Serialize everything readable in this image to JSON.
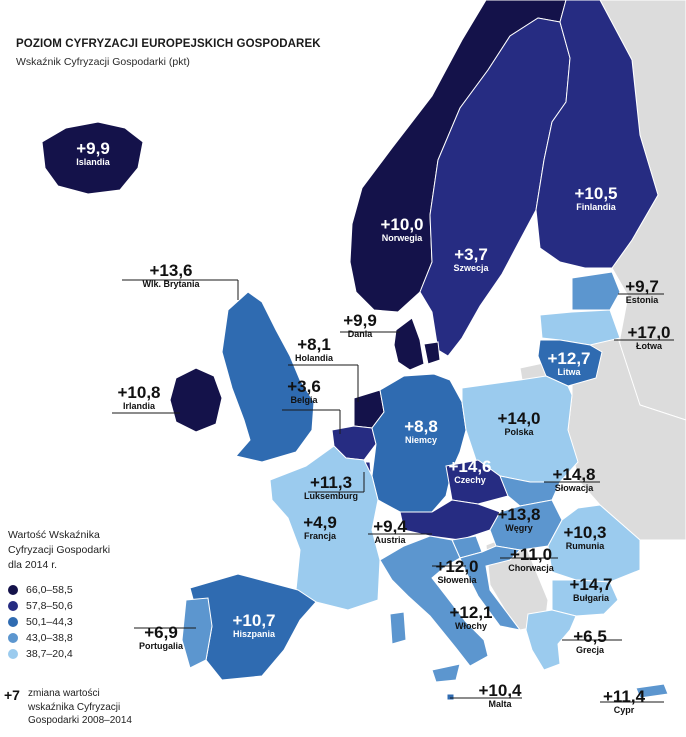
{
  "title": "POZIOM CYFRYZACJI EUROPEJSKICH GOSPODAREK",
  "subtitle": "Wskaźnik Cyfryzacji Gospodarki (pkt)",
  "legend": {
    "title_lines": [
      "Wartość Wskaźnika",
      "Cyfryzacji Gospodarki",
      "dla 2014 r."
    ],
    "items": [
      {
        "range": "66,0–58,5",
        "color": "#14124a"
      },
      {
        "range": "57,8–50,6",
        "color": "#262c82"
      },
      {
        "range": "50,1–44,3",
        "color": "#2f6bb1"
      },
      {
        "range": "43,0–38,8",
        "color": "#5c96cf"
      },
      {
        "range": "38,7–20,4",
        "color": "#9bcbee"
      }
    ],
    "change_sign": "+7",
    "change_lines": [
      "zmiana wartości",
      "wskaźnika Cyfryzacji",
      "Gospodarki 2008–2014"
    ]
  },
  "colors": {
    "sea": "#ffffff",
    "non_member_land": "#dcdcdc",
    "border": "#ffffff",
    "leader_line": "#1a1a1a"
  },
  "countries": {
    "islandia": {
      "value": "+9,9",
      "name": "Islandia",
      "color": "#14124a"
    },
    "norwegia": {
      "value": "+10,0",
      "name": "Norwegia",
      "color": "#14124a"
    },
    "szwecja": {
      "value": "+3,7",
      "name": "Szwecja",
      "color": "#262c82"
    },
    "finlandia": {
      "value": "+10,5",
      "name": "Finlandia",
      "color": "#262c82"
    },
    "estonia": {
      "value": "+9,7",
      "name": "Estonia",
      "color": "#5c96cf"
    },
    "lotwa": {
      "value": "+17,0",
      "name": "Łotwa",
      "color": "#9bcbee"
    },
    "litwa": {
      "value": "+12,7",
      "name": "Litwa",
      "color": "#2f6bb1"
    },
    "dania": {
      "value": "+9,9",
      "name": "Dania",
      "color": "#14124a"
    },
    "wlk_brytania": {
      "value": "+13,6",
      "name": "Wlk. Brytania",
      "color": "#2f6bb1"
    },
    "irlandia": {
      "value": "+10,8",
      "name": "Irlandia",
      "color": "#14124a"
    },
    "holandia": {
      "value": "+8,1",
      "name": "Holandia",
      "color": "#14124a"
    },
    "belgia": {
      "value": "+3,6",
      "name": "Belgia",
      "color": "#262c82"
    },
    "luksemburg": {
      "value": "+11,3",
      "name": "Luksemburg",
      "color": "#262c82"
    },
    "niemcy": {
      "value": "+8,8",
      "name": "Niemcy",
      "color": "#2f6bb1"
    },
    "polska": {
      "value": "+14,0",
      "name": "Polska",
      "color": "#9bcbee"
    },
    "czechy": {
      "value": "+14,6",
      "name": "Czechy",
      "color": "#262c82"
    },
    "slowacja": {
      "value": "+14,8",
      "name": "Słowacja",
      "color": "#5c96cf"
    },
    "francja": {
      "value": "+4,9",
      "name": "Francja",
      "color": "#9bcbee"
    },
    "austria": {
      "value": "+9,4",
      "name": "Austria",
      "color": "#262c82"
    },
    "wegry": {
      "value": "+13,8",
      "name": "Węgry",
      "color": "#5c96cf"
    },
    "slowenia": {
      "value": "+12,0",
      "name": "Słowenia",
      "color": "#5c96cf"
    },
    "chorwacja": {
      "value": "+11,0",
      "name": "Chorwacja",
      "color": "#5c96cf"
    },
    "rumunia": {
      "value": "+10,3",
      "name": "Rumunia",
      "color": "#9bcbee"
    },
    "bulgaria": {
      "value": "+14,7",
      "name": "Bułgaria",
      "color": "#9bcbee"
    },
    "hiszpania": {
      "value": "+10,7",
      "name": "Hiszpania",
      "color": "#2f6bb1"
    },
    "portugalia": {
      "value": "+6,9",
      "name": "Portugalia",
      "color": "#5c96cf"
    },
    "wlochy": {
      "value": "+12,1",
      "name": "Włochy",
      "color": "#5c96cf"
    },
    "grecja": {
      "value": "+6,5",
      "name": "Grecja",
      "color": "#9bcbee"
    },
    "malta": {
      "value": "+10,4",
      "name": "Malta",
      "color": "#2f6bb1"
    },
    "cypr": {
      "value": "+11,4",
      "name": "Cypr",
      "color": "#5c96cf"
    }
  }
}
